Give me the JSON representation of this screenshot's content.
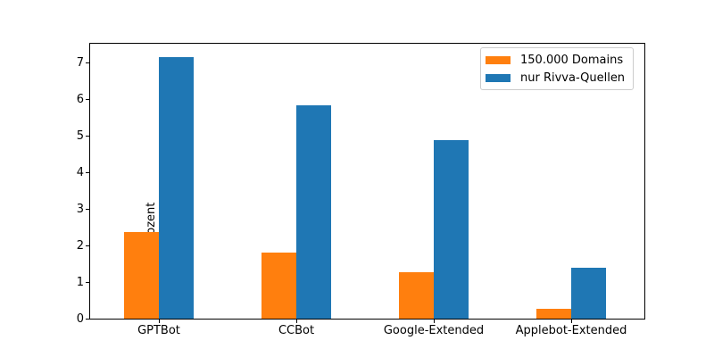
{
  "chart_data": {
    "type": "bar",
    "title": "",
    "xlabel": "",
    "ylabel": "Prozent",
    "categories": [
      "GPTBot",
      "CCBot",
      "Google-Extended",
      "Applebot-Extended"
    ],
    "series": [
      {
        "name": "150.000 Domains",
        "color": "#ff7f0e",
        "values": [
          2.37,
          1.81,
          1.26,
          0.26
        ]
      },
      {
        "name": "nur Rivva-Quellen",
        "color": "#1f77b4",
        "values": [
          7.17,
          5.85,
          4.88,
          1.4
        ]
      }
    ],
    "yticks": [
      0,
      1,
      2,
      3,
      4,
      5,
      6,
      7
    ],
    "ylim": [
      0,
      7.53
    ],
    "grid": false,
    "legend_position": "upper right",
    "bar_group_width_fraction": 0.7
  }
}
